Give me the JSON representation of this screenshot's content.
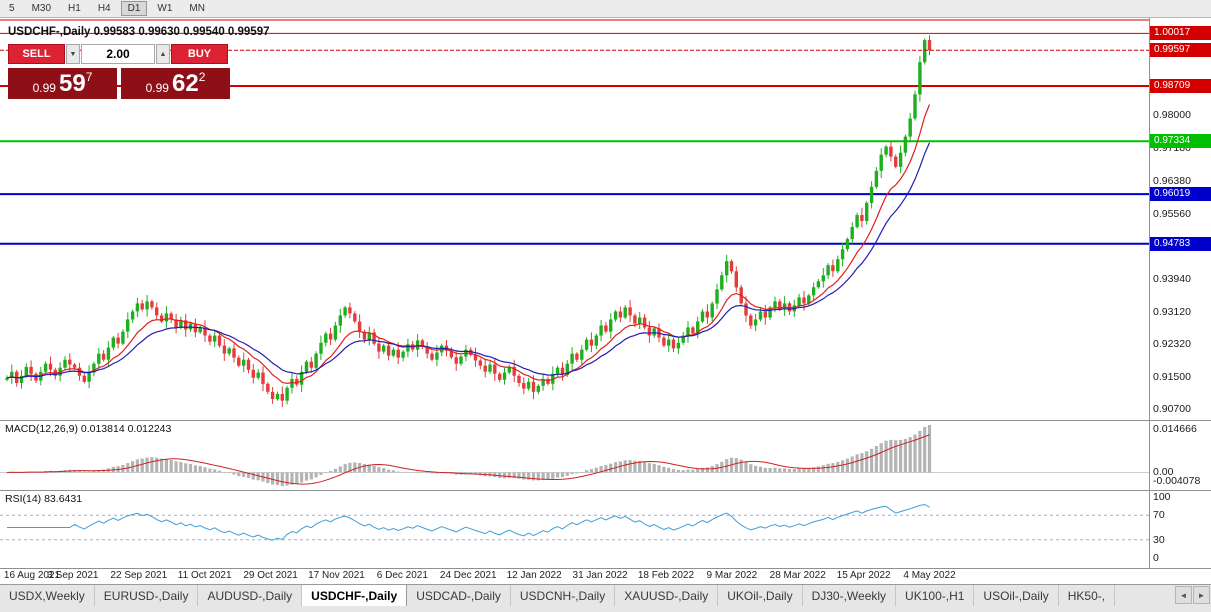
{
  "toolbar": {
    "timeframes": [
      "5",
      "M30",
      "H1",
      "H4",
      "D1",
      "W1",
      "MN"
    ],
    "active": "D1"
  },
  "chart_header": {
    "text": "USDCHF-,Daily  0.99583 0.99630 0.99540 0.99597"
  },
  "trade_panel": {
    "sell_label": "SELL",
    "buy_label": "BUY",
    "volume": "2.00",
    "sell_price": {
      "prefix": "0.99",
      "big": "59",
      "sup": "7"
    },
    "buy_price": {
      "prefix": "0.99",
      "big": "62",
      "sup": "2"
    }
  },
  "icons": {
    "volume_down": "▼",
    "volume_up": "▲",
    "tab_scroll_left": "◄",
    "tab_scroll_right": "►"
  },
  "indicators": {
    "macd": {
      "label": "MACD(12,26,9) 0.013814 0.012243",
      "axis_labels": [
        "0.014666",
        "0.00",
        "-0.004078"
      ]
    },
    "rsi": {
      "label": "RSI(14) 83.6431",
      "axis_labels": [
        "100",
        "70",
        "30",
        "0"
      ]
    }
  },
  "tabs": {
    "items": [
      "USDX,Weekly",
      "EURUSD-,Daily",
      "AUDUSD-,Daily",
      "USDCHF-,Daily",
      "USDCAD-,Daily",
      "USDCNH-,Daily",
      "XAUUSD-,Daily",
      "UKOil-,Daily",
      "DJ30-,Weekly",
      "UK100-,H1",
      "USOil-,Daily",
      "HK50-,"
    ],
    "active_index": 3
  },
  "chart_data": {
    "type": "candlestick",
    "symbol": "USDCHF-",
    "timeframe": "Daily",
    "ohlc": {
      "open": 0.99583,
      "high": 0.9963,
      "low": 0.9954,
      "close": 0.99597
    },
    "price_range": [
      0.904,
      1.004
    ],
    "current_price": {
      "value": 0.99597,
      "label": "0.99597",
      "color": "#d40000"
    },
    "price_axis": {
      "plain_labels": [
        "0.98000",
        "0.97180",
        "0.96380",
        "0.95560",
        "0.93940",
        "0.93120",
        "0.92320",
        "0.91500",
        "0.90700"
      ],
      "badges": [
        {
          "label": "1.00017",
          "price": 1.00017,
          "color": "#d40000"
        },
        {
          "label": "0.98709",
          "price": 0.98709,
          "color": "#d40000"
        },
        {
          "label": "0.97334",
          "price": 0.97334,
          "color": "#00c000"
        },
        {
          "label": "0.96019",
          "price": 0.96019,
          "color": "#0000cc"
        },
        {
          "label": "0.94783",
          "price": 0.94783,
          "color": "#0000cc"
        }
      ]
    },
    "horizontal_lines": [
      {
        "price": 1.0035,
        "color": "#d40000",
        "width": 1
      },
      {
        "price": 1.00017,
        "color": "#d40000",
        "width": 1
      },
      {
        "price": 0.98709,
        "color": "#d40000",
        "width": 2
      },
      {
        "price": 0.97334,
        "color": "#00c000",
        "width": 2
      },
      {
        "price": 0.96019,
        "color": "#0000cc",
        "width": 2
      },
      {
        "price": 0.94783,
        "color": "#0000cc",
        "width": 2
      }
    ],
    "candles": {
      "first_open": 0.914,
      "up_color": "#1fae1f",
      "down_color": "#e43b3b",
      "wick_pattern": [
        6,
        14,
        4,
        18,
        9,
        12,
        5,
        16
      ],
      "closes": [
        0.9145,
        0.916,
        0.9132,
        0.915,
        0.9172,
        0.9155,
        0.9138,
        0.916,
        0.918,
        0.9165,
        0.915,
        0.917,
        0.919,
        0.9178,
        0.917,
        0.915,
        0.9135,
        0.9158,
        0.918,
        0.9205,
        0.919,
        0.922,
        0.9245,
        0.923,
        0.926,
        0.929,
        0.931,
        0.933,
        0.9315,
        0.9335,
        0.932,
        0.93,
        0.9285,
        0.9305,
        0.929,
        0.927,
        0.9288,
        0.9265,
        0.928,
        0.9258,
        0.927,
        0.925,
        0.9235,
        0.925,
        0.9225,
        0.9205,
        0.9218,
        0.9195,
        0.9175,
        0.919,
        0.9165,
        0.9145,
        0.9158,
        0.913,
        0.911,
        0.9092,
        0.9105,
        0.9088,
        0.912,
        0.9142,
        0.9128,
        0.916,
        0.9185,
        0.917,
        0.9205,
        0.9232,
        0.9255,
        0.924,
        0.9275,
        0.93,
        0.932,
        0.9305,
        0.9285,
        0.926,
        0.924,
        0.9258,
        0.923,
        0.921,
        0.9225,
        0.92,
        0.9215,
        0.9195,
        0.921,
        0.9228,
        0.9215,
        0.9238,
        0.9222,
        0.9205,
        0.919,
        0.9208,
        0.9225,
        0.9212,
        0.9196,
        0.918,
        0.9198,
        0.9215,
        0.9202,
        0.9188,
        0.9175,
        0.916,
        0.9178,
        0.9155,
        0.914,
        0.9158,
        0.9172,
        0.915,
        0.9132,
        0.9118,
        0.9135,
        0.911,
        0.9125,
        0.9142,
        0.913,
        0.9155,
        0.917,
        0.9152,
        0.918,
        0.9205,
        0.919,
        0.9215,
        0.924,
        0.9225,
        0.925,
        0.9275,
        0.926,
        0.929,
        0.931,
        0.9295,
        0.932,
        0.93,
        0.928,
        0.9295,
        0.927,
        0.925,
        0.9268,
        0.9245,
        0.9225,
        0.924,
        0.9218,
        0.9232,
        0.925,
        0.927,
        0.9255,
        0.9285,
        0.931,
        0.9295,
        0.933,
        0.9365,
        0.94,
        0.9435,
        0.941,
        0.937,
        0.933,
        0.93,
        0.9275,
        0.929,
        0.931,
        0.9295,
        0.932,
        0.9335,
        0.9315,
        0.933,
        0.931,
        0.9325,
        0.9345,
        0.933,
        0.935,
        0.937,
        0.9385,
        0.94,
        0.9425,
        0.941,
        0.944,
        0.9465,
        0.949,
        0.952,
        0.955,
        0.9535,
        0.958,
        0.962,
        0.966,
        0.97,
        0.972,
        0.9695,
        0.967,
        0.9705,
        0.9745,
        0.979,
        0.985,
        0.993,
        0.9985,
        0.996
      ]
    },
    "moving_averages": [
      {
        "period": 10,
        "color": "#e02020"
      },
      {
        "period": 18,
        "color": "#2020b0"
      }
    ],
    "macd": {
      "params": [
        12,
        26,
        9
      ],
      "main": 0.013814,
      "signal": 0.012243,
      "bar_color": "#b4b4b4",
      "signal_color": "#cc2222",
      "axis_max": 0.014666,
      "axis_min": -0.004078
    },
    "rsi": {
      "period": 14,
      "value": 83.6431,
      "color": "#3f9fd8",
      "levels": [
        70,
        30
      ],
      "range": [
        0,
        100
      ]
    },
    "x_tick_labels": [
      "16 Aug 2021",
      "3 Sep 2021",
      "22 Sep 2021",
      "11 Oct 2021",
      "29 Oct 2021",
      "17 Nov 2021",
      "6 Dec 2021",
      "24 Dec 2021",
      "12 Jan 2022",
      "31 Jan 2022",
      "18 Feb 2022",
      "9 Mar 2022",
      "28 Mar 2022",
      "15 Apr 2022",
      "4 May 2022"
    ]
  }
}
